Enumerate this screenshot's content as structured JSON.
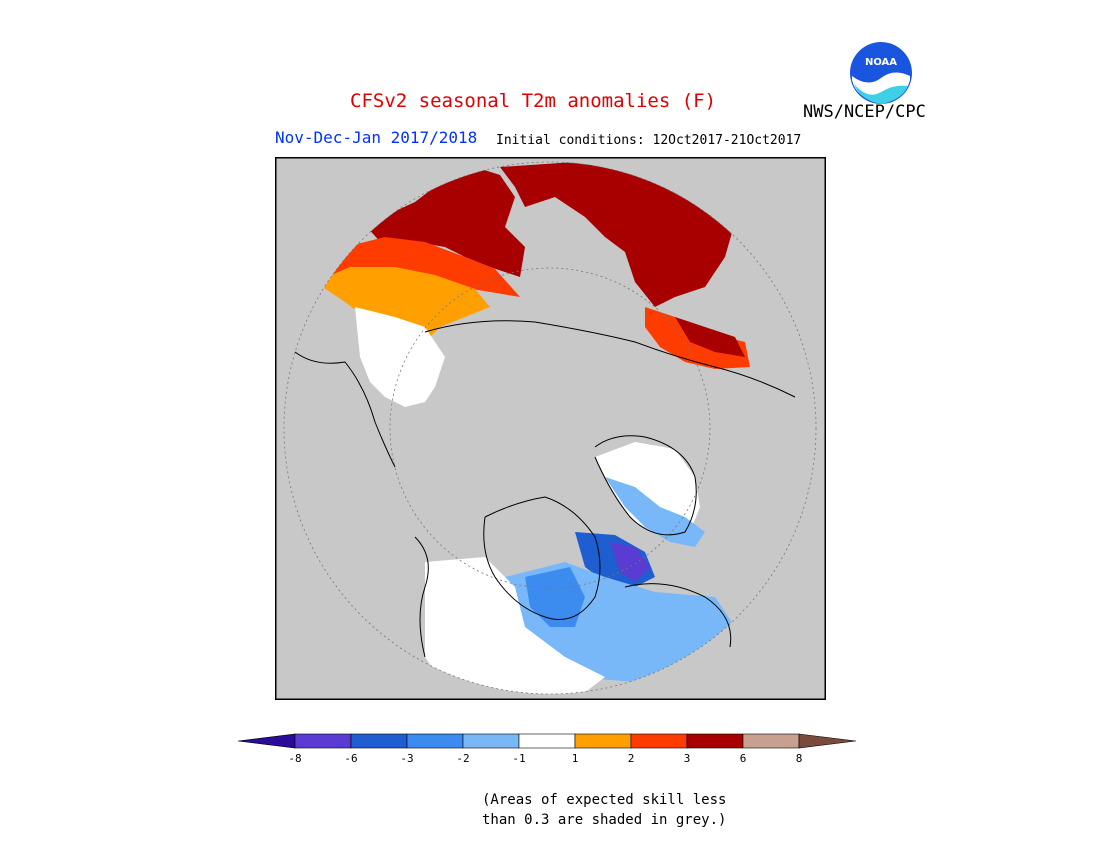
{
  "header": {
    "title": "CFSv2 seasonal T2m anomalies (F)",
    "agency": "NWS/NCEP/CPC",
    "season": "Nov-Dec-Jan 2017/2018",
    "initial_conditions": "Initial conditions: 12Oct2017-21Oct2017",
    "logo_text": "NOAA"
  },
  "map": {
    "projection": "north-polar-stereographic",
    "background_color": "#c8c8c8",
    "land_outline": "black",
    "grid_circles": "dotted"
  },
  "legend": {
    "colors": [
      "#2b0c9a",
      "#5a3cd2",
      "#1f5ed1",
      "#3c8cf0",
      "#78b8f8",
      "#ffffff",
      "#ffa000",
      "#ff3c00",
      "#a80000",
      "#c8a090",
      "#7a4a3c"
    ],
    "ticks": [
      "-8",
      "-6",
      "-3",
      "-2",
      "-1",
      "1",
      "2",
      "3",
      "6",
      "8"
    ],
    "note_line1": "(Areas of expected skill less",
    "note_line2": "than 0.3 are shaded in grey.)"
  }
}
